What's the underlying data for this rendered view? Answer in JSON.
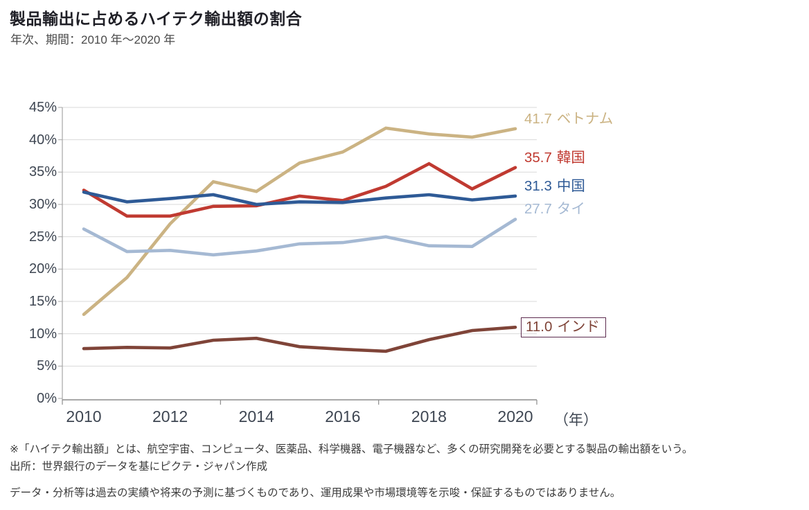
{
  "header": {
    "title": "製品輸出に占めるハイテク輸出額の割合",
    "subtitle": "年次、期間：2010 年～2020 年"
  },
  "chart_data": {
    "type": "line",
    "title": "製品輸出に占めるハイテク輸出額の割合",
    "x": [
      2010,
      2011,
      2012,
      2013,
      2014,
      2015,
      2016,
      2017,
      2018,
      2019,
      2020
    ],
    "series": [
      {
        "key": "vietnam",
        "name": "ベトナム",
        "color": "#cbb383",
        "end_label": "41.7",
        "boxed": false,
        "values": [
          13.0,
          18.7,
          27.0,
          33.5,
          32.0,
          36.4,
          38.1,
          41.8,
          40.9,
          40.4,
          41.7
        ]
      },
      {
        "key": "korea",
        "name": "韓国",
        "color": "#c03a31",
        "end_label": "35.7",
        "boxed": false,
        "values": [
          32.2,
          28.2,
          28.2,
          29.7,
          29.8,
          31.3,
          30.6,
          32.8,
          36.3,
          32.4,
          35.7
        ]
      },
      {
        "key": "china",
        "name": "中国",
        "color": "#2e5a96",
        "end_label": "31.3",
        "boxed": false,
        "values": [
          31.9,
          30.4,
          30.9,
          31.5,
          30.0,
          30.4,
          30.3,
          31.0,
          31.5,
          30.7,
          31.3
        ]
      },
      {
        "key": "thailand",
        "name": "タイ",
        "color": "#a5b9d3",
        "end_label": "27.7",
        "boxed": false,
        "values": [
          26.2,
          22.7,
          22.9,
          22.2,
          22.8,
          23.9,
          24.1,
          25.0,
          23.6,
          23.5,
          27.7
        ]
      },
      {
        "key": "india",
        "name": "インド",
        "color": "#7f4438",
        "end_label": "11.0",
        "boxed": true,
        "box_color": "#5c2b4e",
        "values": [
          7.7,
          7.9,
          7.8,
          9.0,
          9.3,
          8.0,
          7.6,
          7.3,
          9.1,
          10.5,
          11.0
        ]
      }
    ],
    "ylim": [
      0,
      45
    ],
    "ytick_step": 5,
    "ytick_suffix": "%",
    "xticks": [
      2010,
      2012,
      2014,
      2016,
      2018,
      2020
    ],
    "x_unit_label": "（年）",
    "grid": "horizontal",
    "legend_position": "right-end-labels",
    "colors": {
      "gridline": "#d9d9d9",
      "y_axis": "#a6a6a6",
      "x_axis": "#8c8c8c",
      "tick_text": "#3e4652"
    }
  },
  "footnotes": {
    "note1": "※「ハイテク輸出額」とは、航空宇宙、コンピュータ、医薬品、科学機器、電子機器など、多くの研究開発を必要とする製品の輸出額をいう。",
    "source": "出所：世界銀行のデータを基にピクテ・ジャパン作成",
    "disclaimer": "データ・分析等は過去の実績や将来の予測に基づくものであり、運用成果や市場環境等を示唆・保証するものではありません。"
  }
}
